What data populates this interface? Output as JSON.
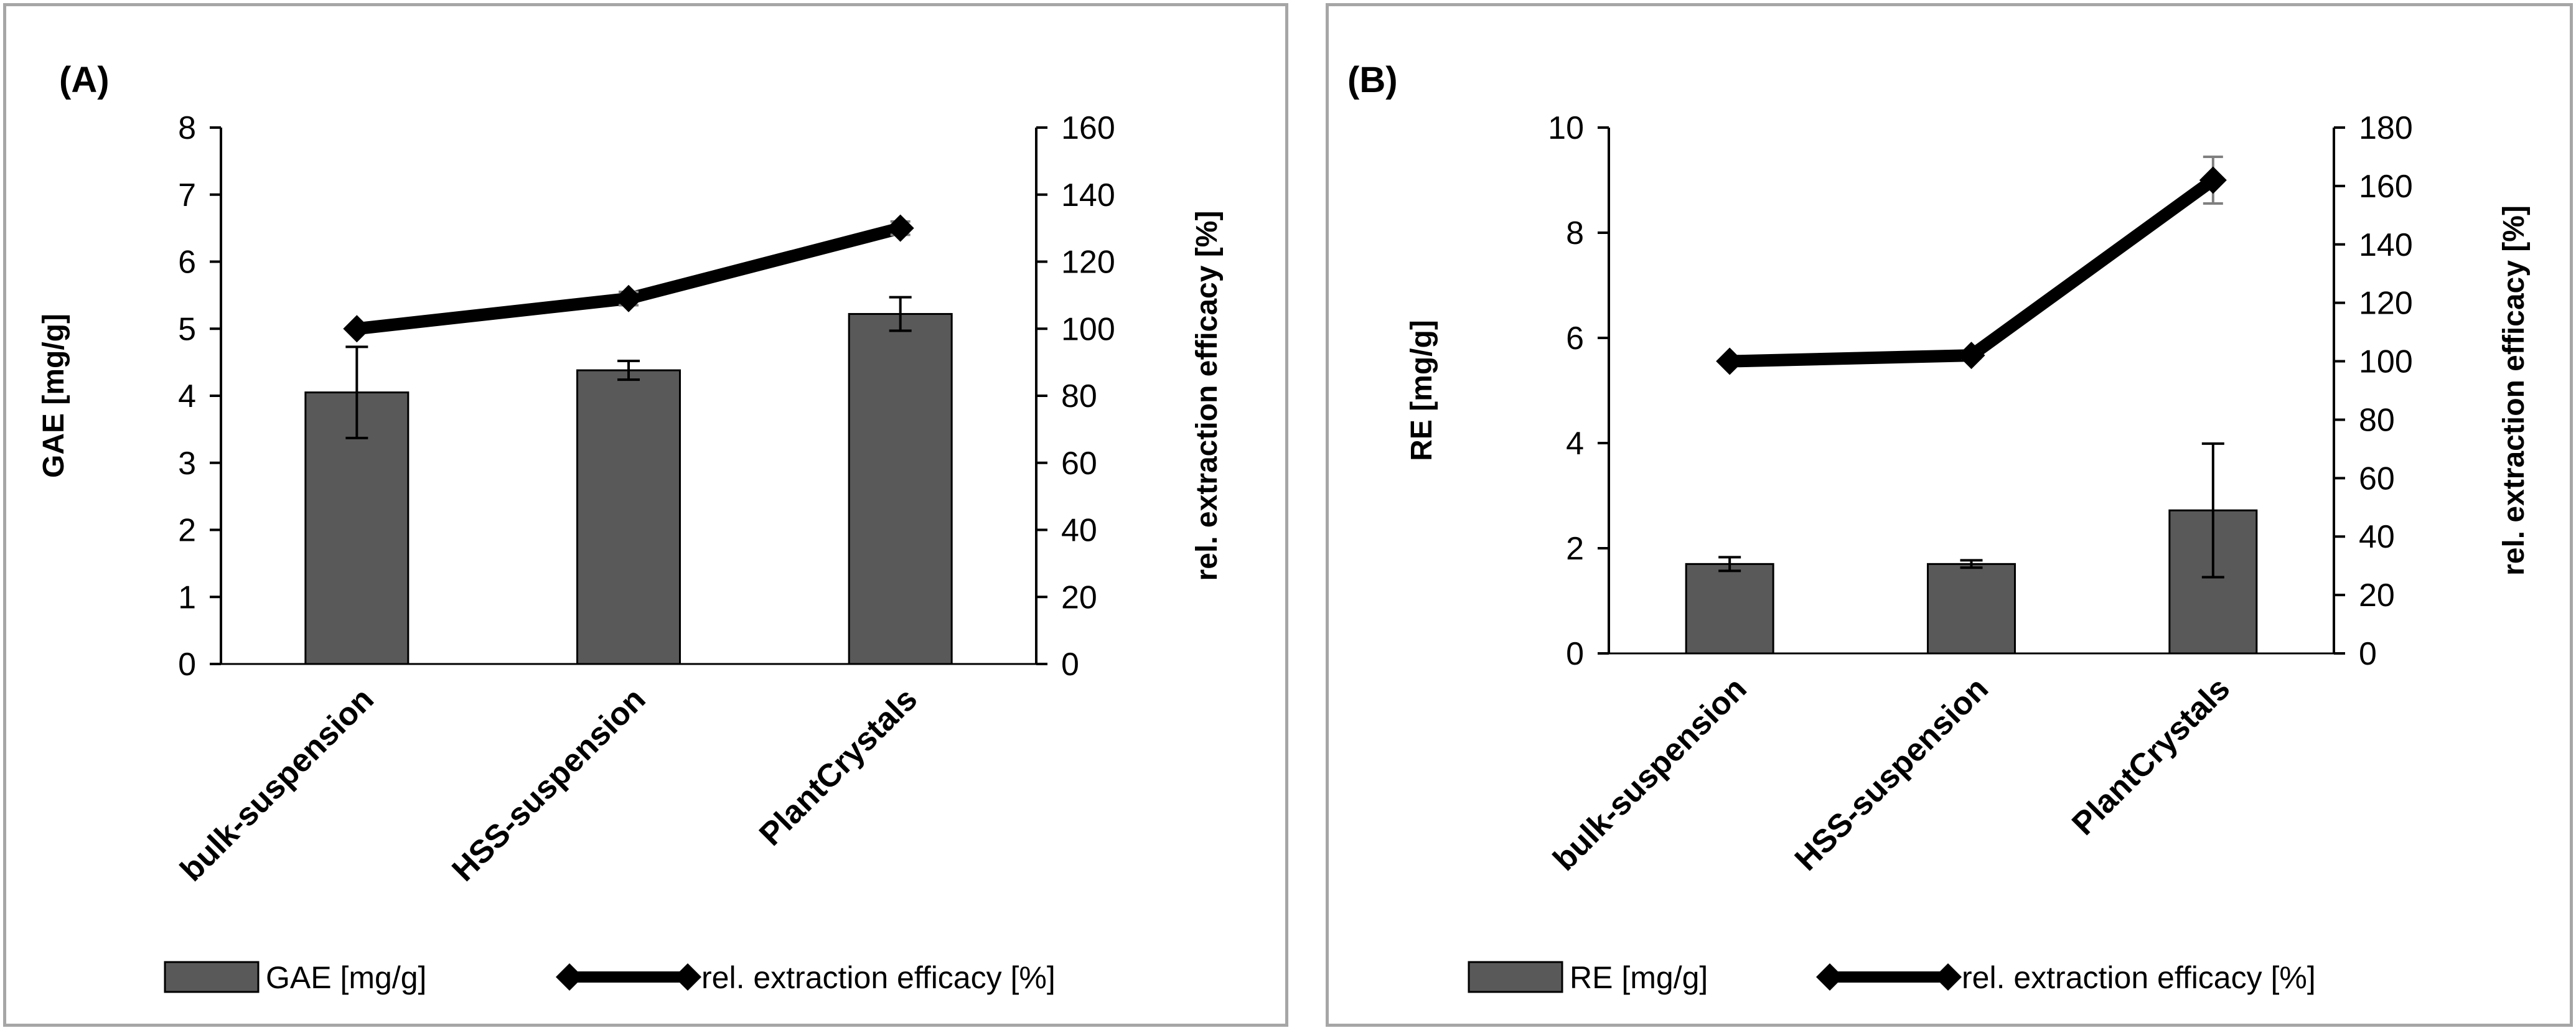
{
  "chart_data": [
    {
      "panel_label": "(A)",
      "type": "bar+line",
      "categories": [
        "bulk-suspension",
        "HSS-suspension",
        "PlantCrystals"
      ],
      "bar_series": {
        "name": "GAE [mg/g]",
        "values": [
          4.05,
          4.38,
          5.22
        ],
        "errors": [
          0.68,
          0.14,
          0.25
        ],
        "color": "#595959"
      },
      "line_series": {
        "name": "rel. extraction efficacy [%]",
        "values": [
          100,
          109,
          130
        ],
        "errors": [
          0,
          2,
          2
        ],
        "color": "#000000"
      },
      "y_left": {
        "label": "GAE [mg/g]",
        "min": 0,
        "max": 8,
        "step": 1,
        "ticks": [
          "0",
          "1",
          "2",
          "3",
          "4",
          "5",
          "6",
          "7",
          "8"
        ]
      },
      "y_right": {
        "label": "rel. extraction efficacy [%]",
        "min": 0,
        "max": 160,
        "step": 20,
        "ticks": [
          "0",
          "20",
          "40",
          "60",
          "80",
          "100",
          "120",
          "140",
          "160"
        ]
      },
      "legend": {
        "bar": "GAE [mg/g]",
        "line": "rel. extraction efficacy [%]",
        "position": "bottom"
      }
    },
    {
      "panel_label": "(B)",
      "type": "bar+line",
      "categories": [
        "bulk-suspension",
        "HSS-suspension",
        "PlantCrystals"
      ],
      "bar_series": {
        "name": "RE [mg/g]",
        "values": [
          1.7,
          1.7,
          2.72
        ],
        "errors": [
          0.13,
          0.07,
          1.27
        ],
        "color": "#595959"
      },
      "line_series": {
        "name": "rel. extraction efficacy [%]",
        "values": [
          100,
          102,
          162
        ],
        "errors": [
          0,
          1,
          8
        ],
        "color": "#000000"
      },
      "y_left": {
        "label": "RE [mg/g]",
        "min": 0,
        "max": 10,
        "step": 2,
        "ticks": [
          "0",
          "2",
          "4",
          "6",
          "8",
          "10"
        ]
      },
      "y_right": {
        "label": "rel. extraction efficacy [%]",
        "min": 0,
        "max": 180,
        "step": 20,
        "ticks": [
          "0",
          "20",
          "40",
          "60",
          "80",
          "100",
          "120",
          "140",
          "160",
          "180"
        ]
      },
      "legend": {
        "bar": "RE [mg/g]",
        "line": "rel. extraction efficacy [%]",
        "position": "bottom"
      }
    }
  ]
}
